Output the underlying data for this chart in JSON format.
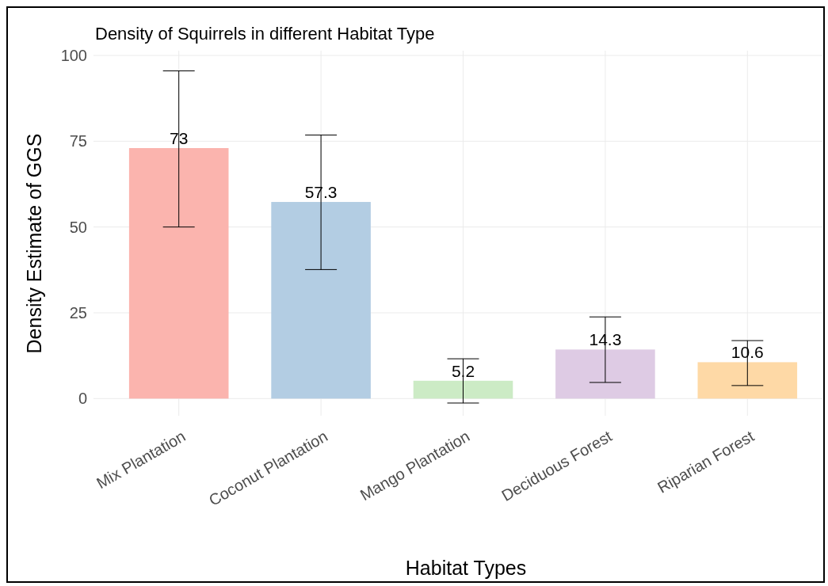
{
  "chart_data": {
    "type": "bar",
    "title": "Density of Squirrels in different Habitat Type",
    "xlabel": "Habitat Types",
    "ylabel": "Density Estimate of GGS",
    "categories": [
      "Mix Plantation",
      "Coconut Plantation",
      "Mango Plantation",
      "Deciduous Forest",
      "Riparian Forest"
    ],
    "values": [
      73,
      57.3,
      5.2,
      14.3,
      10.6
    ],
    "colors": [
      "#fbb4ae",
      "#b3cde3",
      "#ccebc5",
      "#decbe4",
      "#fed9a6"
    ],
    "errors": [
      [
        50,
        95.5
      ],
      [
        37.6,
        76.8
      ],
      [
        -1.3,
        11.6
      ],
      [
        4.7,
        23.8
      ],
      [
        3.8,
        16.9
      ]
    ],
    "data_labels": true,
    "ylim": [
      -5,
      100
    ],
    "yticks": [
      0,
      25,
      50,
      75,
      100
    ],
    "grid": true
  }
}
